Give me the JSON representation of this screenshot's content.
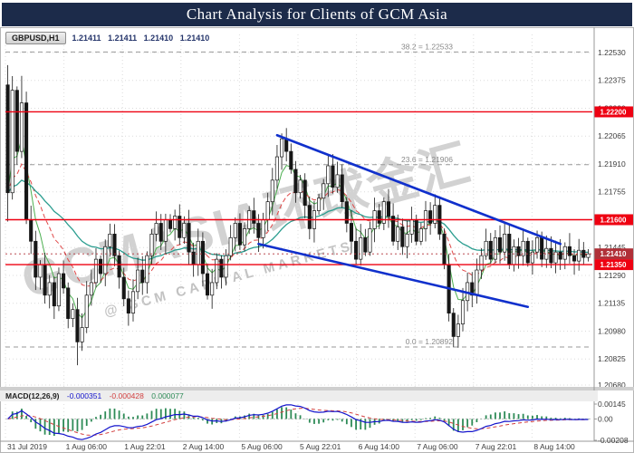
{
  "banner": {
    "title": "Chart Analysis for Clients of GCM Asia"
  },
  "symbol_bar": {
    "symbol": "GBPUSD,H1",
    "open": "1.21411",
    "high": "1.21411",
    "low": "1.21410",
    "close": "1.21410"
  },
  "macd_bar": {
    "label": "MACD(12,26,9)",
    "value_macd": "-0.000351",
    "value_signal": "-0.000428",
    "value_hist": "0.000077"
  },
  "watermark": {
    "line1": "GCMASIA环球金汇",
    "line2": "@ GCM CAPITAL MARKETS"
  },
  "colors": {
    "banner_bg": "#1c2b4a",
    "banner_text": "#ffffff",
    "red_line": "#ee0011",
    "box_text": "#ffffff",
    "current_box": "#b03038",
    "trend": "#1030cc",
    "candle_up": "#ffffff",
    "candle_down": "#161616",
    "candle_outline": "#161616",
    "ma_fast": "#e04848",
    "ma_slow": "#2a9d8f",
    "ma_mid": "#4caf50",
    "macd_line": "#1414cc",
    "macd_signal": "#d24040",
    "macd_hist": "#2e8b57",
    "grid": "#dcdcdc",
    "fib": "#9a9a9a",
    "axis_text": "#3c3c3c",
    "separator": "#cfcfcf"
  },
  "chart_data": {
    "type": "candlestick",
    "title": "Chart Analysis for Clients of GCM Asia",
    "symbol": "GBPUSD",
    "timeframe": "H1",
    "price_axis": {
      "ticks": [
        1.2253,
        1.22375,
        1.2222,
        1.22065,
        1.2191,
        1.21755,
        1.216,
        1.21445,
        1.2129,
        1.21135,
        1.2098,
        1.20825,
        1.2068
      ]
    },
    "x_labels": [
      "31 Jul 2019",
      "1 Aug 06:00",
      "1 Aug 22:01",
      "2 Aug 14:00",
      "5 Aug 06:00",
      "5 Aug 22:01",
      "6 Aug 14:00",
      "7 Aug 06:00",
      "7 Aug 22:01",
      "8 Aug 14:00"
    ],
    "hlines": [
      {
        "price": 1.222,
        "label": "1.22200"
      },
      {
        "price": 1.216,
        "label": "1.21600"
      },
      {
        "price": 1.2135,
        "label": "1.21350"
      }
    ],
    "current_price": {
      "price": 1.2141,
      "label": "1.21410"
    },
    "fib_levels": [
      {
        "label": "38.2 = 1.22533",
        "price": 1.22533
      },
      {
        "label": "23.6 = 1.21906",
        "price": 1.21906
      },
      {
        "label": "0.0 = 1.20892",
        "price": 1.20892
      }
    ],
    "trendlines": [
      {
        "i1": 58,
        "p1": 1.2207,
        "i2": 119,
        "p2": 1.21465
      },
      {
        "i1": 54,
        "p1": 1.21465,
        "i2": 112,
        "p2": 1.21115
      }
    ],
    "candles": {
      "first_open": 1.2235,
      "closes": [
        1.2175,
        1.2232,
        1.2198,
        1.2225,
        1.216,
        1.2148,
        1.2128,
        1.2135,
        1.2118,
        1.2125,
        1.2112,
        1.213,
        1.2122,
        1.2105,
        1.211,
        1.2092,
        1.21,
        1.2118,
        1.2125,
        1.2138,
        1.213,
        1.2145,
        1.2152,
        1.214,
        1.2128,
        1.2116,
        1.2108,
        1.212,
        1.2132,
        1.2125,
        1.214,
        1.2152,
        1.2158,
        1.2148,
        1.216,
        1.2155,
        1.2162,
        1.215,
        1.2158,
        1.2142,
        1.2135,
        1.2148,
        1.213,
        1.2118,
        1.2125,
        1.2138,
        1.2128,
        1.214,
        1.215,
        1.2158,
        1.2146,
        1.2155,
        1.2165,
        1.2158,
        1.215,
        1.216,
        1.217,
        1.2182,
        1.2195,
        1.2205,
        1.2198,
        1.2188,
        1.2175,
        1.2182,
        1.2168,
        1.2155,
        1.2165,
        1.2172,
        1.218,
        1.219,
        1.2178,
        1.2185,
        1.217,
        1.2158,
        1.2148,
        1.2138,
        1.215,
        1.2142,
        1.2155,
        1.2165,
        1.2158,
        1.217,
        1.2162,
        1.2148,
        1.2156,
        1.2145,
        1.2152,
        1.216,
        1.2148,
        1.2155,
        1.2165,
        1.2158,
        1.2168,
        1.2152,
        1.2135,
        1.2108,
        1.2095,
        1.2102,
        1.2115,
        1.2125,
        1.2118,
        1.2132,
        1.214,
        1.2148,
        1.2138,
        1.215,
        1.2142,
        1.2152,
        1.2135,
        1.2145,
        1.214,
        1.2148,
        1.2136,
        1.2142,
        1.215,
        1.2138,
        1.2144,
        1.2136,
        1.2142,
        1.2138,
        1.2145,
        1.214,
        1.2137,
        1.2143,
        1.2139,
        1.2141
      ],
      "wick_overrides": {
        "0": {
          "h": 1.2246,
          "l": 1.2159
        },
        "3": {
          "h": 1.224
        },
        "15": {
          "l": 1.2079
        },
        "59": {
          "h": 1.2208
        },
        "96": {
          "l": 1.2089
        }
      }
    },
    "moving_averages": [
      {
        "period": 5,
        "color_key": "ma_mid",
        "dash": ""
      },
      {
        "period": 13,
        "color_key": "ma_fast",
        "dash": "5 3"
      },
      {
        "period": 34,
        "color_key": "ma_slow",
        "dash": ""
      }
    ],
    "macd": {
      "fast": 12,
      "slow": 26,
      "signal": 9,
      "ticks": [
        {
          "label": "0.00145",
          "value": 0.00145
        },
        {
          "label": "0.00",
          "value": 0
        },
        {
          "label": "-0.00208",
          "value": -0.00208
        }
      ]
    }
  }
}
